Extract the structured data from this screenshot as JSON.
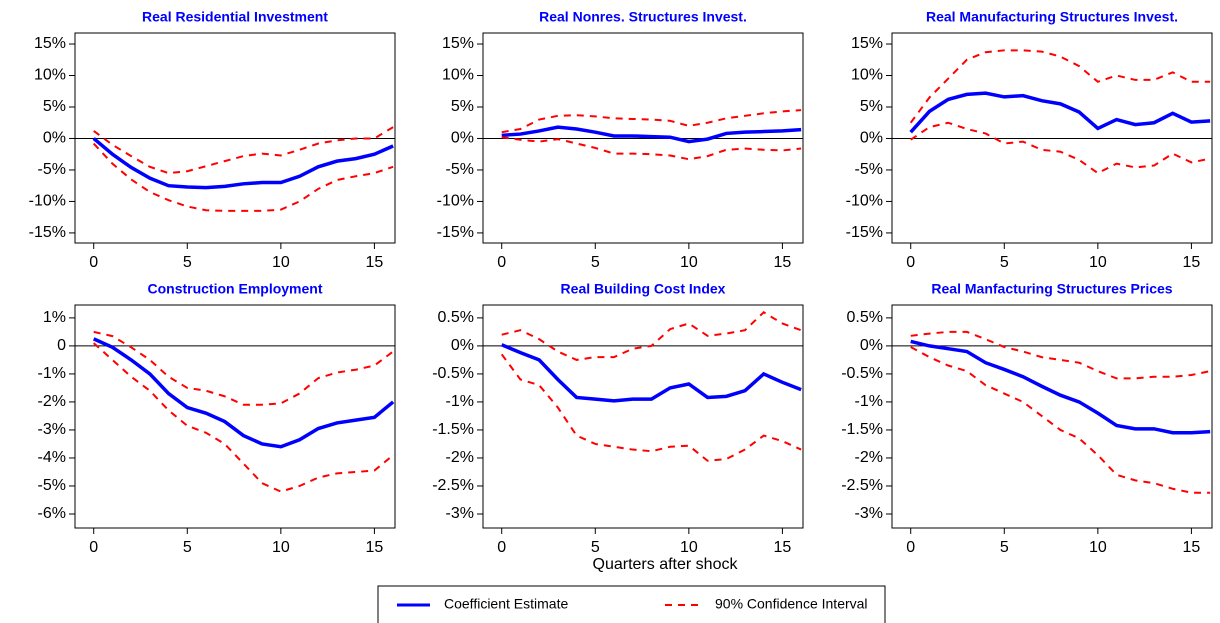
{
  "xlabel": "Quarters after shock",
  "legend": "bottom",
  "chart_data": [
    {
      "type": "line",
      "title": "Real Residential Investment",
      "x": [
        0,
        1,
        2,
        3,
        4,
        5,
        6,
        7,
        8,
        9,
        10,
        11,
        12,
        13,
        14,
        15,
        16
      ],
      "xlim": [
        -1,
        16.1
      ],
      "xticks": [
        0,
        5,
        10,
        15
      ],
      "ylim": [
        -16.6,
        16.75
      ],
      "yticks": [
        {
          "value": 15,
          "label": "15%"
        },
        {
          "value": 10,
          "label": "10%"
        },
        {
          "value": 5,
          "label": "5%"
        },
        {
          "value": 0,
          "label": "0%"
        },
        {
          "value": -5,
          "label": "-5%"
        },
        {
          "value": -10,
          "label": "-10%"
        },
        {
          "value": -15,
          "label": "-15%"
        }
      ],
      "series": [
        {
          "name": "Coefficient Estimate",
          "color": "#0000ff",
          "values": [
            0,
            -2.5,
            -4.6,
            -6.3,
            -7.5,
            -7.7,
            -7.8,
            -7.6,
            -7.2,
            -7.0,
            -7.0,
            -6.0,
            -4.5,
            -3.6,
            -3.2,
            -2.5,
            -1.2
          ]
        },
        {
          "name": "90% Confidence Interval",
          "color": "#ff0000",
          "dash": true,
          "values": [
            1.2,
            -1.0,
            -2.8,
            -4.5,
            -5.5,
            -5.2,
            -4.4,
            -3.6,
            -2.8,
            -2.4,
            -2.7,
            -1.8,
            -0.8,
            -0.3,
            0,
            0,
            1.8
          ]
        },
        {
          "name": "90% Confidence Interval",
          "color": "#ff0000",
          "dash": true,
          "values": [
            -0.8,
            -4.0,
            -6.5,
            -8.5,
            -9.8,
            -10.8,
            -11.4,
            -11.5,
            -11.5,
            -11.5,
            -11.3,
            -10.0,
            -8.0,
            -6.6,
            -6.0,
            -5.5,
            -4.5
          ]
        }
      ]
    },
    {
      "type": "line",
      "title": "Real Nonres. Structures Invest.",
      "x": [
        0,
        1,
        2,
        3,
        4,
        5,
        6,
        7,
        8,
        9,
        10,
        11,
        12,
        13,
        14,
        15,
        16
      ],
      "xlim": [
        -1,
        16.1
      ],
      "xticks": [
        0,
        5,
        10,
        15
      ],
      "ylim": [
        -16.6,
        16.75
      ],
      "yticks": [
        {
          "value": 15,
          "label": "15%"
        },
        {
          "value": 10,
          "label": "10%"
        },
        {
          "value": 5,
          "label": "5%"
        },
        {
          "value": 0,
          "label": "0%"
        },
        {
          "value": -5,
          "label": "-5%"
        },
        {
          "value": -10,
          "label": "-10%"
        },
        {
          "value": -15,
          "label": "-15%"
        }
      ],
      "series": [
        {
          "name": "Coefficient Estimate",
          "color": "#0000ff",
          "values": [
            0.5,
            0.7,
            1.2,
            1.8,
            1.5,
            1.0,
            0.4,
            0.4,
            0.3,
            0.2,
            -0.5,
            -0.1,
            0.8,
            1.0,
            1.1,
            1.2,
            1.4
          ]
        },
        {
          "name": "90% Confidence Interval",
          "color": "#ff0000",
          "dash": true,
          "values": [
            1.0,
            1.5,
            3.0,
            3.6,
            3.7,
            3.5,
            3.2,
            3.1,
            3.0,
            2.8,
            2.0,
            2.5,
            3.2,
            3.6,
            4.0,
            4.3,
            4.5
          ]
        },
        {
          "name": "90% Confidence Interval",
          "color": "#ff0000",
          "dash": true,
          "values": [
            0.2,
            -0.2,
            -0.5,
            -0.1,
            -0.8,
            -1.5,
            -2.4,
            -2.4,
            -2.5,
            -2.7,
            -3.3,
            -2.8,
            -1.8,
            -1.6,
            -1.8,
            -1.9,
            -1.6
          ]
        }
      ]
    },
    {
      "type": "line",
      "title": "Real Manufacturing Structures Invest.",
      "x": [
        0,
        1,
        2,
        3,
        4,
        5,
        6,
        7,
        8,
        9,
        10,
        11,
        12,
        13,
        14,
        15,
        16
      ],
      "xlim": [
        -1,
        16.1
      ],
      "xticks": [
        0,
        5,
        10,
        15
      ],
      "ylim": [
        -16.6,
        16.75
      ],
      "yticks": [
        {
          "value": 15,
          "label": "15%"
        },
        {
          "value": 10,
          "label": "10%"
        },
        {
          "value": 5,
          "label": "5%"
        },
        {
          "value": 0,
          "label": "0%"
        },
        {
          "value": -5,
          "label": "-5%"
        },
        {
          "value": -10,
          "label": "-10%"
        },
        {
          "value": -15,
          "label": "-15%"
        }
      ],
      "series": [
        {
          "name": "Coefficient Estimate",
          "color": "#0000ff",
          "values": [
            1.0,
            4.3,
            6.2,
            7.0,
            7.2,
            6.6,
            6.8,
            6.0,
            5.5,
            4.2,
            1.6,
            3.0,
            2.2,
            2.5,
            4.0,
            2.6,
            2.8
          ]
        },
        {
          "name": "90% Confidence Interval",
          "color": "#ff0000",
          "dash": true,
          "values": [
            2.5,
            6.5,
            9.5,
            12.5,
            13.7,
            14.0,
            14.0,
            13.8,
            13.0,
            11.5,
            9.0,
            10.0,
            9.3,
            9.3,
            10.5,
            9.0,
            9.0
          ]
        },
        {
          "name": "90% Confidence Interval",
          "color": "#ff0000",
          "dash": true,
          "values": [
            -0.2,
            1.8,
            2.5,
            1.5,
            0.8,
            -0.8,
            -0.5,
            -1.8,
            -2.1,
            -3.4,
            -5.5,
            -4.0,
            -4.6,
            -4.3,
            -2.4,
            -3.8,
            -3.2
          ]
        }
      ]
    },
    {
      "type": "line",
      "title": "Construction Employment",
      "x": [
        0,
        1,
        2,
        3,
        4,
        5,
        6,
        7,
        8,
        9,
        10,
        11,
        12,
        13,
        14,
        15,
        16
      ],
      "xlim": [
        -1,
        16.1
      ],
      "xticks": [
        0,
        5,
        10,
        15
      ],
      "ylim": [
        -6.5,
        1.46
      ],
      "yticks": [
        {
          "value": 1,
          "label": "1%"
        },
        0,
        {
          "value": -1,
          "label": "-1%"
        },
        {
          "value": -2,
          "label": "-2%"
        },
        {
          "value": -3,
          "label": "-3%"
        },
        {
          "value": -4,
          "label": "-4%"
        },
        {
          "value": -5,
          "label": "-5%"
        },
        {
          "value": -6,
          "label": "-6%"
        }
      ],
      "series": [
        {
          "name": "Coefficient Estimate",
          "color": "#0000ff",
          "values": [
            0.25,
            -0.05,
            -0.5,
            -1.0,
            -1.7,
            -2.2,
            -2.4,
            -2.7,
            -3.2,
            -3.5,
            -3.6,
            -3.35,
            -2.95,
            -2.75,
            -2.65,
            -2.55,
            -2.0
          ]
        },
        {
          "name": "90% Confidence Interval",
          "color": "#ff0000",
          "dash": true,
          "values": [
            0.5,
            0.35,
            -0.05,
            -0.5,
            -1.1,
            -1.5,
            -1.6,
            -1.8,
            -2.1,
            -2.1,
            -2.05,
            -1.7,
            -1.15,
            -0.95,
            -0.85,
            -0.7,
            -0.2
          ]
        },
        {
          "name": "90% Confidence Interval",
          "color": "#ff0000",
          "dash": true,
          "values": [
            0.1,
            -0.5,
            -1.1,
            -1.6,
            -2.3,
            -2.85,
            -3.1,
            -3.5,
            -4.2,
            -4.9,
            -5.2,
            -5.0,
            -4.7,
            -4.55,
            -4.5,
            -4.45,
            -3.9
          ]
        }
      ]
    },
    {
      "type": "line",
      "title": "Real Building Cost Index",
      "x": [
        0,
        1,
        2,
        3,
        4,
        5,
        6,
        7,
        8,
        9,
        10,
        11,
        12,
        13,
        14,
        15,
        16
      ],
      "xlim": [
        -1,
        16.1
      ],
      "xticks": [
        0,
        5,
        10,
        15
      ],
      "ylim": [
        -3.25,
        0.73
      ],
      "yticks": [
        {
          "value": 0.5,
          "label": "0.5%"
        },
        {
          "value": 0,
          "label": "0%"
        },
        {
          "value": -0.5,
          "label": "-0.5%"
        },
        {
          "value": -1,
          "label": "-1%"
        },
        {
          "value": -1.5,
          "label": "-1.5%"
        },
        {
          "value": -2,
          "label": "-2%"
        },
        {
          "value": -2.5,
          "label": "-2.5%"
        },
        {
          "value": -3,
          "label": "-3%"
        }
      ],
      "series": [
        {
          "name": "Coefficient Estimate",
          "color": "#0000ff",
          "values": [
            0.02,
            -0.12,
            -0.25,
            -0.6,
            -0.92,
            -0.95,
            -0.98,
            -0.95,
            -0.95,
            -0.75,
            -0.68,
            -0.92,
            -0.9,
            -0.8,
            -0.5,
            -0.65,
            -0.78
          ]
        },
        {
          "name": "90% Confidence Interval",
          "color": "#ff0000",
          "dash": true,
          "values": [
            0.2,
            0.28,
            0.12,
            -0.1,
            -0.25,
            -0.2,
            -0.2,
            -0.05,
            0,
            0.3,
            0.4,
            0.18,
            0.22,
            0.28,
            0.6,
            0.4,
            0.28
          ]
        },
        {
          "name": "90% Confidence Interval",
          "color": "#ff0000",
          "dash": true,
          "values": [
            -0.15,
            -0.6,
            -0.7,
            -1.1,
            -1.6,
            -1.75,
            -1.8,
            -1.85,
            -1.88,
            -1.8,
            -1.78,
            -2.05,
            -2.02,
            -1.85,
            -1.6,
            -1.7,
            -1.85
          ]
        }
      ]
    },
    {
      "type": "line",
      "title": "Real Manfacturing Structures Prices",
      "x": [
        0,
        1,
        2,
        3,
        4,
        5,
        6,
        7,
        8,
        9,
        10,
        11,
        12,
        13,
        14,
        15,
        16
      ],
      "xlim": [
        -1,
        16.1
      ],
      "xticks": [
        0,
        5,
        10,
        15
      ],
      "ylim": [
        -3.25,
        0.73
      ],
      "yticks": [
        {
          "value": 0.5,
          "label": "0.5%"
        },
        {
          "value": 0,
          "label": "0%"
        },
        {
          "value": -0.5,
          "label": "-0.5%"
        },
        {
          "value": -1,
          "label": "-1%"
        },
        {
          "value": -1.5,
          "label": "-1.5%"
        },
        {
          "value": -2,
          "label": "-2%"
        },
        {
          "value": -2.5,
          "label": "-2.5%"
        },
        {
          "value": -3,
          "label": "-3%"
        }
      ],
      "series": [
        {
          "name": "Coefficient Estimate",
          "color": "#0000ff",
          "values": [
            0.08,
            0,
            -0.05,
            -0.1,
            -0.3,
            -0.42,
            -0.55,
            -0.72,
            -0.88,
            -1.0,
            -1.2,
            -1.42,
            -1.48,
            -1.48,
            -1.55,
            -1.55,
            -1.53
          ]
        },
        {
          "name": "90% Confidence Interval",
          "color": "#ff0000",
          "dash": true,
          "values": [
            0.18,
            0.22,
            0.25,
            0.25,
            0.12,
            -0.02,
            -0.1,
            -0.2,
            -0.25,
            -0.3,
            -0.45,
            -0.58,
            -0.58,
            -0.55,
            -0.55,
            -0.52,
            -0.45
          ]
        },
        {
          "name": "90% Confidence Interval",
          "color": "#ff0000",
          "dash": true,
          "values": [
            -0.02,
            -0.2,
            -0.35,
            -0.45,
            -0.7,
            -0.85,
            -1.0,
            -1.25,
            -1.5,
            -1.65,
            -1.95,
            -2.3,
            -2.4,
            -2.45,
            -2.55,
            -2.62,
            -2.62
          ]
        }
      ]
    }
  ]
}
